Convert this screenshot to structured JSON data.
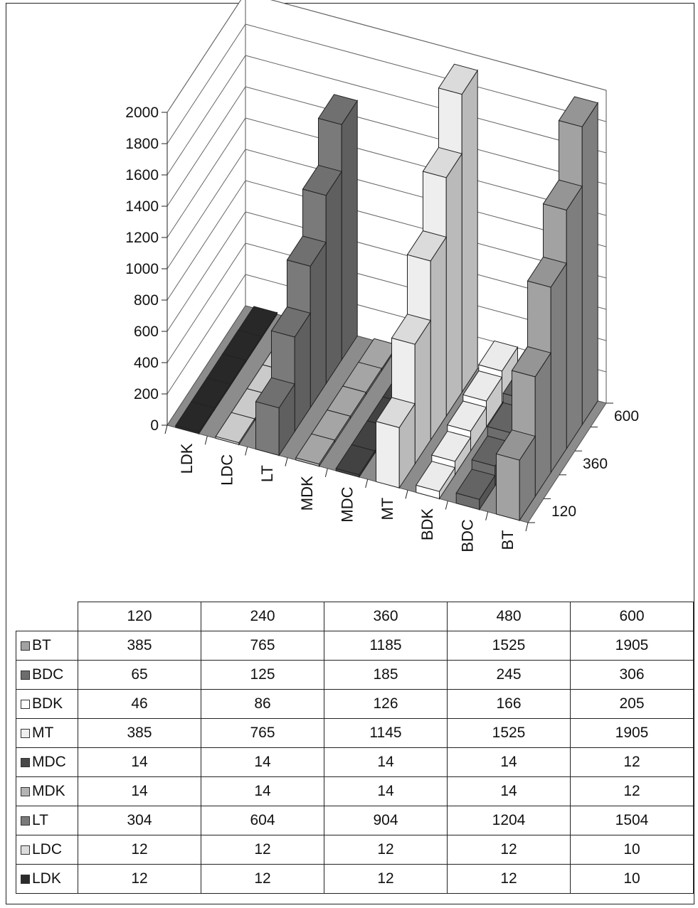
{
  "chart_data": {
    "type": "bar",
    "style": "3d-column",
    "x_categories": [
      "120",
      "240",
      "360",
      "480",
      "600"
    ],
    "depth_tick_labels": [
      "120",
      "360",
      "600"
    ],
    "series_categories": [
      "LDK",
      "LDC",
      "LT",
      "MDK",
      "MDC",
      "MT",
      "BDK",
      "BDC",
      "BT"
    ],
    "y_ticks": [
      "0",
      "200",
      "400",
      "600",
      "800",
      "1000",
      "1200",
      "1400",
      "1600",
      "1800",
      "2000"
    ],
    "ylim": [
      0,
      2000
    ],
    "grid": true,
    "legend": "table-below",
    "series": [
      {
        "name": "BT",
        "color": "#a2a2a2",
        "values": [
          385,
          765,
          1185,
          1525,
          1905
        ]
      },
      {
        "name": "BDC",
        "color": "#6d6d6d",
        "values": [
          65,
          125,
          185,
          245,
          306
        ]
      },
      {
        "name": "BDK",
        "color": "#ffffff",
        "values": [
          46,
          86,
          126,
          166,
          205
        ]
      },
      {
        "name": "MT",
        "color": "#eeeeee",
        "values": [
          385,
          765,
          1145,
          1525,
          1905
        ]
      },
      {
        "name": "MDC",
        "color": "#484848",
        "values": [
          14,
          14,
          14,
          14,
          12
        ]
      },
      {
        "name": "MDK",
        "color": "#b3b3b3",
        "values": [
          14,
          14,
          14,
          14,
          12
        ]
      },
      {
        "name": "LT",
        "color": "#7a7a7a",
        "values": [
          304,
          604,
          904,
          1204,
          1504
        ]
      },
      {
        "name": "LDC",
        "color": "#dcdcdc",
        "values": [
          12,
          12,
          12,
          12,
          10
        ]
      },
      {
        "name": "LDK",
        "color": "#2b2b2b",
        "values": [
          12,
          12,
          12,
          12,
          10
        ]
      }
    ]
  }
}
